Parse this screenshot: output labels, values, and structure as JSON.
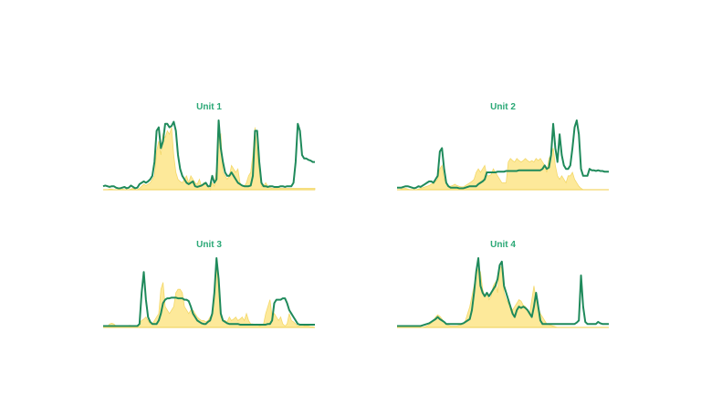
{
  "colors": {
    "line": "#1f8a5b",
    "area": "#fde99a",
    "area_edge": "#f3d86a",
    "title": "#2aa876"
  },
  "chart_data": [
    {
      "type": "line",
      "title": "Unit 1",
      "x": [
        0,
        1,
        2,
        3,
        4,
        5,
        6,
        7,
        8,
        9,
        10,
        11,
        12,
        13,
        14,
        15,
        16,
        17,
        18,
        19,
        20,
        21,
        22,
        23,
        24,
        25,
        26,
        27,
        28,
        29,
        30,
        31,
        32,
        33,
        34,
        35,
        36,
        37,
        38,
        39,
        40,
        41,
        42,
        43,
        44,
        45,
        46,
        47,
        48,
        49,
        50,
        51,
        52,
        53,
        54,
        55,
        56,
        57,
        58,
        59,
        60,
        61,
        62,
        63,
        64,
        65,
        66,
        67,
        68,
        69,
        70,
        71,
        72,
        73,
        74,
        75,
        76,
        77,
        78,
        79,
        80,
        81,
        82,
        83,
        84,
        85,
        86,
        87,
        88,
        89,
        90,
        91,
        92,
        93,
        94,
        95,
        96,
        97,
        98,
        99
      ],
      "series": [
        {
          "values": [
            0.05,
            0.06,
            0.05,
            0.04,
            0.05,
            0.05,
            0.03,
            0.02,
            0.02,
            0.03,
            0.04,
            0.02,
            0.03,
            0.06,
            0.04,
            0.02,
            0.03,
            0.08,
            0.1,
            0.12,
            0.1,
            0.12,
            0.15,
            0.2,
            0.4,
            0.85,
            0.9,
            0.6,
            0.7,
            0.95,
            0.95,
            0.9,
            0.92,
            0.98,
            0.85,
            0.5,
            0.3,
            0.2,
            0.15,
            0.1,
            0.08,
            0.1,
            0.12,
            0.05,
            0.04,
            0.05,
            0.06,
            0.08,
            0.1,
            0.05,
            0.05,
            0.2,
            0.1,
            0.15,
            1.0,
            0.6,
            0.4,
            0.25,
            0.2,
            0.2,
            0.25,
            0.2,
            0.15,
            0.1,
            0.08,
            0.06,
            0.05,
            0.05,
            0.05,
            0.06,
            0.2,
            0.85,
            0.85,
            0.4,
            0.1,
            0.05,
            0.05,
            0.04,
            0.05,
            0.05,
            0.04,
            0.04,
            0.04,
            0.05,
            0.05,
            0.04,
            0.05,
            0.05,
            0.05,
            0.1,
            0.4,
            0.95,
            0.85,
            0.5,
            0.45,
            0.45,
            0.43,
            0.42,
            0.4,
            0.4
          ]
        },
        {
          "values": [
            0.0,
            0.0,
            0.0,
            0.01,
            0.01,
            0.0,
            0.0,
            0.0,
            0.0,
            0.01,
            0.0,
            0.0,
            0.0,
            0.01,
            0.02,
            0.0,
            0.0,
            0.02,
            0.05,
            0.08,
            0.06,
            0.08,
            0.1,
            0.15,
            0.2,
            0.55,
            0.7,
            0.5,
            0.8,
            0.75,
            0.85,
            0.8,
            0.9,
            0.5,
            0.25,
            0.15,
            0.12,
            0.1,
            0.15,
            0.2,
            0.1,
            0.2,
            0.15,
            0.1,
            0.08,
            0.15,
            0.05,
            0.1,
            0.1,
            0.05,
            0.0,
            0.1,
            0.05,
            0.3,
            0.75,
            0.8,
            0.25,
            0.2,
            0.15,
            0.2,
            0.35,
            0.3,
            0.25,
            0.3,
            0.1,
            0.05,
            0.05,
            0.1,
            0.2,
            0.25,
            0.5,
            0.9,
            0.55,
            0.3,
            0.05,
            0.05,
            0.1,
            0.05,
            0.03,
            0.02,
            0.02,
            0.02,
            0.03,
            0.02,
            0.02,
            0.02,
            0.02,
            0.02,
            0.02,
            0.02,
            0.02,
            0.02,
            0.02,
            0.02,
            0.02,
            0.02,
            0.02,
            0.02,
            0.02,
            0.02
          ]
        }
      ]
    },
    {
      "type": "line",
      "title": "Unit 2",
      "x": [
        0,
        1,
        2,
        3,
        4,
        5,
        6,
        7,
        8,
        9,
        10,
        11,
        12,
        13,
        14,
        15,
        16,
        17,
        18,
        19,
        20,
        21,
        22,
        23,
        24,
        25,
        26,
        27,
        28,
        29,
        30,
        31,
        32,
        33,
        34,
        35,
        36,
        37,
        38,
        39,
        40,
        41,
        42,
        43,
        44,
        45,
        46,
        47,
        48,
        49,
        50,
        51,
        52,
        53,
        54,
        55,
        56,
        57,
        58,
        59,
        60,
        61,
        62,
        63,
        64,
        65,
        66,
        67,
        68,
        69,
        70,
        71,
        72,
        73,
        74,
        75,
        76,
        77,
        78,
        79,
        80,
        81,
        82,
        83,
        84,
        85,
        86,
        87,
        88,
        89,
        90,
        91,
        92,
        93,
        94,
        95,
        96,
        97,
        98,
        99
      ],
      "series": [
        {
          "values": [
            0.03,
            0.03,
            0.03,
            0.04,
            0.05,
            0.05,
            0.04,
            0.03,
            0.02,
            0.03,
            0.05,
            0.04,
            0.06,
            0.08,
            0.1,
            0.12,
            0.12,
            0.1,
            0.15,
            0.2,
            0.55,
            0.6,
            0.3,
            0.1,
            0.05,
            0.03,
            0.03,
            0.03,
            0.03,
            0.02,
            0.02,
            0.02,
            0.03,
            0.04,
            0.05,
            0.05,
            0.05,
            0.05,
            0.08,
            0.1,
            0.12,
            0.15,
            0.25,
            0.25,
            0.25,
            0.25,
            0.25,
            0.26,
            0.26,
            0.26,
            0.26,
            0.27,
            0.27,
            0.27,
            0.27,
            0.27,
            0.27,
            0.28,
            0.28,
            0.28,
            0.28,
            0.28,
            0.28,
            0.28,
            0.28,
            0.28,
            0.28,
            0.28,
            0.3,
            0.35,
            0.3,
            0.32,
            0.5,
            0.95,
            0.6,
            0.4,
            0.8,
            0.5,
            0.35,
            0.3,
            0.3,
            0.35,
            0.6,
            0.9,
            1.0,
            0.8,
            0.3,
            0.2,
            0.2,
            0.2,
            0.3,
            0.28,
            0.28,
            0.27,
            0.28,
            0.27,
            0.27,
            0.26,
            0.26,
            0.26
          ]
        },
        {
          "values": [
            0.0,
            0.0,
            0.01,
            0.02,
            0.02,
            0.01,
            0.0,
            0.0,
            0.0,
            0.0,
            0.01,
            0.02,
            0.03,
            0.04,
            0.05,
            0.06,
            0.08,
            0.1,
            0.12,
            0.15,
            0.3,
            0.35,
            0.15,
            0.1,
            0.05,
            0.05,
            0.06,
            0.08,
            0.06,
            0.05,
            0.04,
            0.04,
            0.06,
            0.08,
            0.1,
            0.12,
            0.15,
            0.25,
            0.3,
            0.25,
            0.3,
            0.35,
            0.2,
            0.2,
            0.22,
            0.3,
            0.25,
            0.2,
            0.15,
            0.1,
            0.1,
            0.1,
            0.4,
            0.45,
            0.42,
            0.4,
            0.45,
            0.42,
            0.4,
            0.42,
            0.45,
            0.42,
            0.4,
            0.42,
            0.4,
            0.45,
            0.42,
            0.45,
            0.4,
            0.35,
            0.25,
            0.45,
            0.5,
            0.6,
            0.35,
            0.2,
            0.15,
            0.2,
            0.15,
            0.1,
            0.2,
            0.2,
            0.25,
            0.15,
            0.1,
            0.05,
            0.02,
            0.0,
            0.0,
            0.0,
            0.0,
            0.0,
            0.0,
            0.0,
            0.0,
            0.0,
            0.0,
            0.0,
            0.0,
            0.0
          ]
        }
      ]
    },
    {
      "type": "line",
      "title": "Unit 3",
      "x": [
        0,
        1,
        2,
        3,
        4,
        5,
        6,
        7,
        8,
        9,
        10,
        11,
        12,
        13,
        14,
        15,
        16,
        17,
        18,
        19,
        20,
        21,
        22,
        23,
        24,
        25,
        26,
        27,
        28,
        29,
        30,
        31,
        32,
        33,
        34,
        35,
        36,
        37,
        38,
        39,
        40,
        41,
        42,
        43,
        44,
        45,
        46,
        47,
        48,
        49,
        50,
        51,
        52,
        53,
        54,
        55,
        56,
        57,
        58,
        59,
        60,
        61,
        62,
        63,
        64,
        65,
        66,
        67,
        68,
        69,
        70,
        71,
        72,
        73,
        74,
        75,
        76,
        77,
        78,
        79,
        80,
        81,
        82,
        83,
        84,
        85,
        86,
        87,
        88,
        89,
        90,
        91,
        92,
        93,
        94,
        95,
        96,
        97,
        98,
        99
      ],
      "series": [
        {
          "values": [
            0.02,
            0.02,
            0.02,
            0.02,
            0.02,
            0.02,
            0.02,
            0.02,
            0.02,
            0.02,
            0.02,
            0.02,
            0.02,
            0.02,
            0.02,
            0.02,
            0.02,
            0.05,
            0.5,
            0.8,
            0.4,
            0.15,
            0.08,
            0.05,
            0.05,
            0.05,
            0.1,
            0.2,
            0.35,
            0.4,
            0.42,
            0.42,
            0.43,
            0.43,
            0.43,
            0.42,
            0.42,
            0.42,
            0.4,
            0.4,
            0.38,
            0.3,
            0.2,
            0.15,
            0.1,
            0.08,
            0.06,
            0.05,
            0.05,
            0.08,
            0.1,
            0.2,
            0.5,
            1.0,
            0.7,
            0.2,
            0.1,
            0.08,
            0.06,
            0.05,
            0.05,
            0.05,
            0.05,
            0.05,
            0.04,
            0.04,
            0.04,
            0.04,
            0.04,
            0.04,
            0.04,
            0.04,
            0.04,
            0.04,
            0.04,
            0.04,
            0.04,
            0.05,
            0.05,
            0.1,
            0.35,
            0.4,
            0.4,
            0.4,
            0.42,
            0.42,
            0.35,
            0.25,
            0.2,
            0.15,
            0.1,
            0.05,
            0.04,
            0.04,
            0.04,
            0.04,
            0.04,
            0.04,
            0.04,
            0.04
          ]
        },
        {
          "values": [
            0.0,
            0.0,
            0.01,
            0.05,
            0.06,
            0.05,
            0.02,
            0.01,
            0.0,
            0.0,
            0.01,
            0.02,
            0.03,
            0.03,
            0.02,
            0.01,
            0.0,
            0.05,
            0.1,
            0.12,
            0.15,
            0.1,
            0.05,
            0.05,
            0.1,
            0.15,
            0.2,
            0.55,
            0.65,
            0.3,
            0.25,
            0.2,
            0.25,
            0.3,
            0.5,
            0.55,
            0.55,
            0.5,
            0.3,
            0.25,
            0.2,
            0.25,
            0.25,
            0.2,
            0.15,
            0.12,
            0.1,
            0.1,
            0.08,
            0.1,
            0.15,
            0.2,
            0.4,
            0.9,
            0.55,
            0.15,
            0.1,
            0.1,
            0.08,
            0.15,
            0.1,
            0.12,
            0.15,
            0.1,
            0.12,
            0.15,
            0.1,
            0.2,
            0.1,
            0.05,
            0.05,
            0.03,
            0.05,
            0.02,
            0.03,
            0.05,
            0.2,
            0.3,
            0.4,
            0.15,
            0.2,
            0.15,
            0.1,
            0.15,
            0.05,
            0.02,
            0.05,
            0.2,
            0.1,
            0.08,
            0.05,
            0.02,
            0.03,
            0.05,
            0.02,
            0.02,
            0.02,
            0.01,
            0.01,
            0.0
          ]
        }
      ]
    },
    {
      "type": "line",
      "title": "Unit 4",
      "x": [
        0,
        1,
        2,
        3,
        4,
        5,
        6,
        7,
        8,
        9,
        10,
        11,
        12,
        13,
        14,
        15,
        16,
        17,
        18,
        19,
        20,
        21,
        22,
        23,
        24,
        25,
        26,
        27,
        28,
        29,
        30,
        31,
        32,
        33,
        34,
        35,
        36,
        37,
        38,
        39,
        40,
        41,
        42,
        43,
        44,
        45,
        46,
        47,
        48,
        49,
        50,
        51,
        52,
        53,
        54,
        55,
        56,
        57,
        58,
        59,
        60,
        61,
        62,
        63,
        64,
        65,
        66,
        67,
        68,
        69,
        70,
        71,
        72,
        73,
        74,
        75,
        76,
        77,
        78,
        79,
        80,
        81,
        82,
        83,
        84,
        85,
        86,
        87,
        88,
        89,
        90,
        91,
        92,
        93,
        94,
        95,
        96,
        97,
        98,
        99
      ],
      "series": [
        {
          "values": [
            0.02,
            0.02,
            0.02,
            0.02,
            0.02,
            0.02,
            0.02,
            0.02,
            0.02,
            0.02,
            0.02,
            0.02,
            0.03,
            0.04,
            0.05,
            0.06,
            0.08,
            0.1,
            0.12,
            0.15,
            0.12,
            0.1,
            0.08,
            0.05,
            0.05,
            0.05,
            0.05,
            0.05,
            0.05,
            0.05,
            0.05,
            0.06,
            0.08,
            0.1,
            0.12,
            0.25,
            0.5,
            0.8,
            1.0,
            0.6,
            0.5,
            0.45,
            0.5,
            0.45,
            0.5,
            0.55,
            0.6,
            0.7,
            0.9,
            0.95,
            0.6,
            0.5,
            0.4,
            0.3,
            0.2,
            0.15,
            0.25,
            0.3,
            0.28,
            0.3,
            0.28,
            0.25,
            0.2,
            0.15,
            0.3,
            0.5,
            0.3,
            0.1,
            0.05,
            0.05,
            0.05,
            0.05,
            0.05,
            0.05,
            0.05,
            0.05,
            0.05,
            0.05,
            0.05,
            0.05,
            0.05,
            0.05,
            0.05,
            0.05,
            0.07,
            0.1,
            0.75,
            0.3,
            0.08,
            0.05,
            0.05,
            0.05,
            0.05,
            0.05,
            0.08,
            0.06,
            0.05,
            0.05,
            0.05,
            0.05
          ]
        },
        {
          "values": [
            0.0,
            0.0,
            0.0,
            0.0,
            0.0,
            0.0,
            0.0,
            0.0,
            0.0,
            0.0,
            0.0,
            0.0,
            0.0,
            0.01,
            0.02,
            0.04,
            0.06,
            0.1,
            0.15,
            0.18,
            0.16,
            0.12,
            0.08,
            0.05,
            0.03,
            0.02,
            0.02,
            0.02,
            0.02,
            0.03,
            0.04,
            0.06,
            0.1,
            0.2,
            0.3,
            0.45,
            0.6,
            0.75,
            0.85,
            0.8,
            0.55,
            0.45,
            0.5,
            0.4,
            0.45,
            0.6,
            0.65,
            0.5,
            0.9,
            0.85,
            0.5,
            0.4,
            0.35,
            0.3,
            0.25,
            0.3,
            0.35,
            0.4,
            0.38,
            0.32,
            0.3,
            0.25,
            0.2,
            0.4,
            0.6,
            0.4,
            0.3,
            0.2,
            0.15,
            0.1,
            0.05,
            0.04,
            0.03,
            0.02,
            0.01,
            0.0,
            0.0,
            0.0,
            0.0,
            0.0,
            0.0,
            0.0,
            0.0,
            0.0,
            0.0,
            0.0,
            0.0,
            0.0,
            0.0,
            0.0,
            0.0,
            0.0,
            0.0,
            0.0,
            0.0,
            0.0,
            0.0,
            0.0,
            0.0,
            0.0
          ]
        }
      ]
    }
  ]
}
